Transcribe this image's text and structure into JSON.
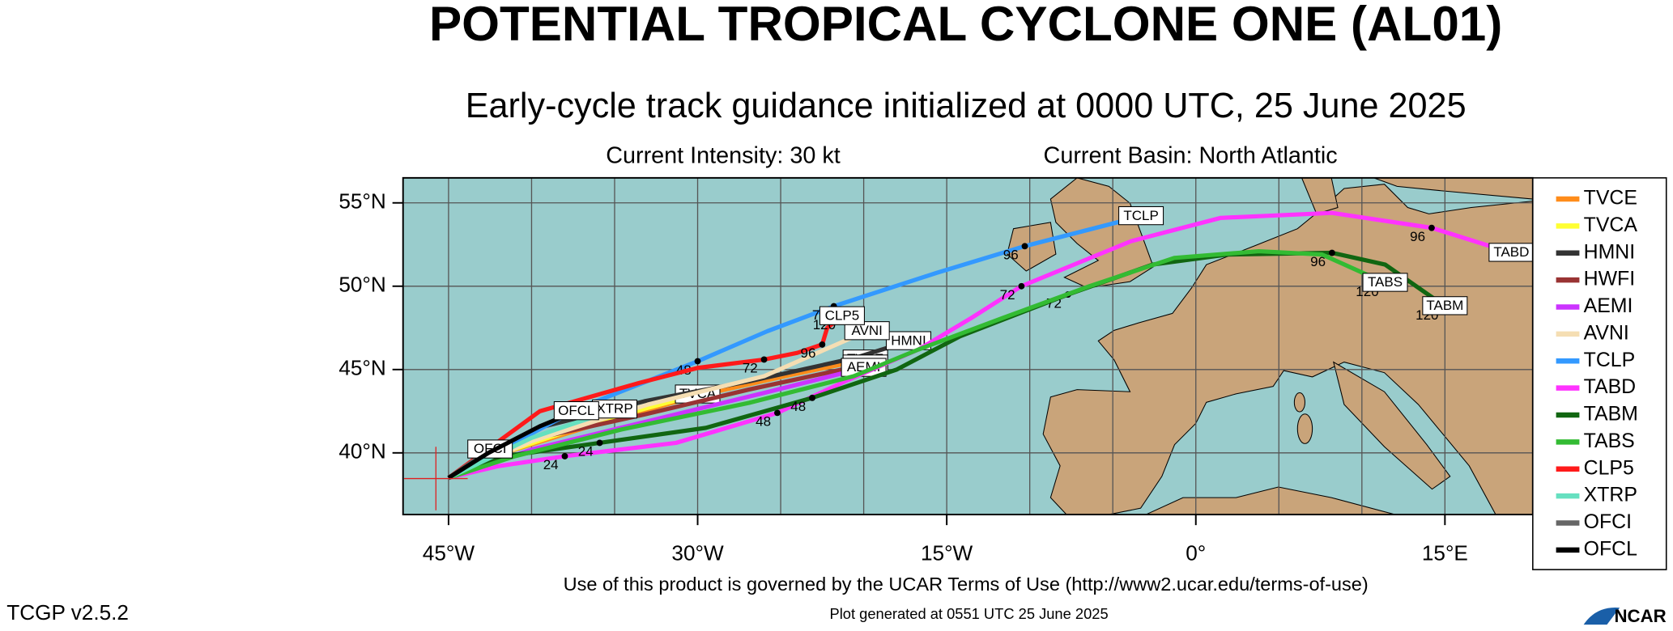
{
  "chart_data": {
    "type": "track-map",
    "title": "POTENTIAL TROPICAL CYCLONE ONE (AL01)",
    "subtitle": "Early-cycle track guidance initialized at 0000 UTC, 25 June 2025",
    "intensity": "Current Intensity: 30 kt",
    "basin": "Current Basin: North Atlantic",
    "terms": "Use of this product is governed by the UCAR Terms of Use (http://www2.ucar.edu/terms-of-use)",
    "version": "TCGP v2.5.2",
    "generated": "Plot generated at 0551 UTC   25 June 2025",
    "logo": "NCAR",
    "xlim": [
      -47.74,
      20.29
    ],
    "ylim": [
      36.3,
      56.5
    ],
    "xticks": [
      {
        "value": -45,
        "label": "45°W"
      },
      {
        "value": -30,
        "label": "30°W"
      },
      {
        "value": -15,
        "label": "15°W"
      },
      {
        "value": 0,
        "label": "0°"
      },
      {
        "value": 15,
        "label": "15°E"
      }
    ],
    "yticks": [
      {
        "value": 40,
        "label": "40°N"
      },
      {
        "value": 45,
        "label": "45°N"
      },
      {
        "value": 50,
        "label": "50°N"
      },
      {
        "value": 55,
        "label": "55°N"
      }
    ],
    "x_grid": [
      -45,
      -40,
      -35,
      -30,
      -25,
      -20,
      -15,
      -10,
      -5,
      0,
      5,
      10,
      15
    ],
    "grid": true,
    "series": [
      {
        "name": "TVCE",
        "color": "#ff8c1a",
        "points": [
          [
            -45,
            38.5
          ],
          [
            -42.3,
            39.8
          ],
          [
            -35.8,
            41.8
          ],
          [
            -30.1,
            43.4
          ],
          [
            -24.3,
            44.7
          ],
          [
            -19.9,
            45.6
          ]
        ]
      },
      {
        "name": "TVCA",
        "color": "#ffff33",
        "points": [
          [
            -45,
            38.5
          ],
          [
            -42,
            39.9
          ],
          [
            -36,
            41.9
          ],
          [
            -30,
            43.5
          ]
        ]
      },
      {
        "name": "HMNI",
        "color": "#333333",
        "points": [
          [
            -45,
            38.5
          ],
          [
            -39.6,
            41.5
          ],
          [
            -33.2,
            43.1
          ],
          [
            -26.9,
            44.3
          ],
          [
            -20.5,
            45.7
          ],
          [
            -17.3,
            46.7
          ]
        ]
      },
      {
        "name": "HWFI",
        "color": "#993333",
        "points": [
          [
            -45,
            38.5
          ],
          [
            -39.6,
            40.9
          ],
          [
            -33.2,
            42.3
          ],
          [
            -26.9,
            43.8
          ],
          [
            -19.9,
            45.3
          ]
        ]
      },
      {
        "name": "AEMI",
        "color": "#cc33ff",
        "points": [
          [
            -45,
            38.5
          ],
          [
            -40,
            40.2
          ],
          [
            -33,
            41.9
          ],
          [
            -26,
            43.6
          ],
          [
            -20,
            45.1
          ]
        ]
      },
      {
        "name": "AVNI",
        "color": "#f5deb3",
        "points": [
          [
            -45,
            38.5
          ],
          [
            -40,
            40.7
          ],
          [
            -33,
            42.9
          ],
          [
            -26,
            44.6
          ],
          [
            -19.8,
            47.3
          ]
        ]
      },
      {
        "name": "TCLP",
        "color": "#3399ff",
        "points": [
          [
            -45,
            38.5
          ],
          [
            -37.1,
            42.7
          ],
          [
            -30,
            45.5
          ],
          [
            -25.8,
            47.3
          ],
          [
            -21.8,
            48.8
          ],
          [
            -15.6,
            50.8
          ],
          [
            -10.3,
            52.4
          ],
          [
            -3.3,
            54.2
          ]
        ],
        "hour_marks": [
          {
            "hour": 48,
            "lon": -30.0,
            "lat": 45.5
          },
          {
            "hour": 72,
            "lon": -21.8,
            "lat": 48.8
          },
          {
            "hour": 96,
            "lon": -10.3,
            "lat": 52.4
          }
        ]
      },
      {
        "name": "TABD",
        "color": "#ff33ff",
        "points": [
          [
            -45,
            38.5
          ],
          [
            -42,
            39.2
          ],
          [
            -38,
            39.8
          ],
          [
            -31.3,
            40.6
          ],
          [
            -25.2,
            42.4
          ],
          [
            -21.1,
            44.3
          ],
          [
            -16.7,
            46.2
          ],
          [
            -13.5,
            48.1
          ],
          [
            -10.5,
            50
          ],
          [
            -3.9,
            52.7
          ],
          [
            1.5,
            54.1
          ],
          [
            8.2,
            54.4
          ],
          [
            14.2,
            53.5
          ],
          [
            19,
            52
          ]
        ],
        "hour_marks": [
          {
            "hour": 24,
            "lon": -38.0,
            "lat": 39.8
          },
          {
            "hour": 48,
            "lon": -25.2,
            "lat": 42.4
          },
          {
            "hour": 72,
            "lon": -10.5,
            "lat": 50.0
          },
          {
            "hour": 96,
            "lon": 14.2,
            "lat": 53.5
          }
        ]
      },
      {
        "name": "TABM",
        "color": "#116611",
        "points": [
          [
            -45,
            38.5
          ],
          [
            -41.6,
            39.8
          ],
          [
            -35.9,
            40.6
          ],
          [
            -29.5,
            41.5
          ],
          [
            -23.1,
            43.3
          ],
          [
            -18,
            45
          ],
          [
            -14.2,
            47
          ],
          [
            -7.7,
            49.5
          ],
          [
            -2.6,
            51.3
          ],
          [
            1.9,
            51.9
          ],
          [
            8.2,
            52
          ],
          [
            11.4,
            51.3
          ],
          [
            15,
            48.8
          ]
        ],
        "hour_marks": [
          {
            "hour": 24,
            "lon": -35.9,
            "lat": 40.6
          },
          {
            "hour": 48,
            "lon": -23.1,
            "lat": 43.3
          },
          {
            "hour": 72,
            "lon": -7.7,
            "lat": 49.5
          },
          {
            "hour": 96,
            "lon": 8.2,
            "lat": 52.0
          },
          {
            "hour": 120,
            "lon": 15.0,
            "lat": 48.8
          }
        ]
      },
      {
        "name": "TABS",
        "color": "#33bb33",
        "points": [
          [
            -45,
            38.5
          ],
          [
            -41,
            39.8
          ],
          [
            -34.6,
            41.4
          ],
          [
            -26.9,
            43
          ],
          [
            -20.6,
            44.6
          ],
          [
            -16.7,
            46.2
          ],
          [
            -11.6,
            48.1
          ],
          [
            -6.4,
            50
          ],
          [
            -1.3,
            51.7
          ],
          [
            3.8,
            52.1
          ],
          [
            7.6,
            51.9
          ],
          [
            11.4,
            50.2
          ]
        ],
        "hour_marks": [
          {
            "hour": 120,
            "lon": 11.4,
            "lat": 50.2
          }
        ]
      },
      {
        "name": "CLP5",
        "color": "#ff1a1a",
        "points": [
          [
            -45,
            38.5
          ],
          [
            -39.5,
            42.5
          ],
          [
            -33.5,
            44.2
          ],
          [
            -30,
            45.1
          ],
          [
            -26,
            45.6
          ],
          [
            -24,
            46
          ],
          [
            -22.5,
            46.5
          ],
          [
            -22.2,
            47.5
          ],
          [
            -21.3,
            48.2
          ]
        ],
        "hour_marks": [
          {
            "hour": 72,
            "lon": -26.0,
            "lat": 45.6
          },
          {
            "hour": 96,
            "lon": -22.5,
            "lat": 46.5
          },
          {
            "hour": 120,
            "lon": -21.3,
            "lat": 48.2
          }
        ]
      },
      {
        "name": "XTRP",
        "color": "#66e0c0",
        "points": [
          [
            -45,
            38.5
          ],
          [
            -40,
            40.9
          ],
          [
            -35,
            42.6
          ]
        ]
      },
      {
        "name": "OFCI",
        "color": "#666666",
        "points": [
          [
            -45,
            38.5
          ],
          [
            -42.5,
            40.2
          ]
        ]
      },
      {
        "name": "OFCL",
        "color": "#000000",
        "points": [
          [
            -45,
            38.5
          ],
          [
            -42.6,
            40
          ],
          [
            -39.5,
            41.6
          ],
          [
            -37.3,
            42.5
          ]
        ]
      }
    ]
  }
}
